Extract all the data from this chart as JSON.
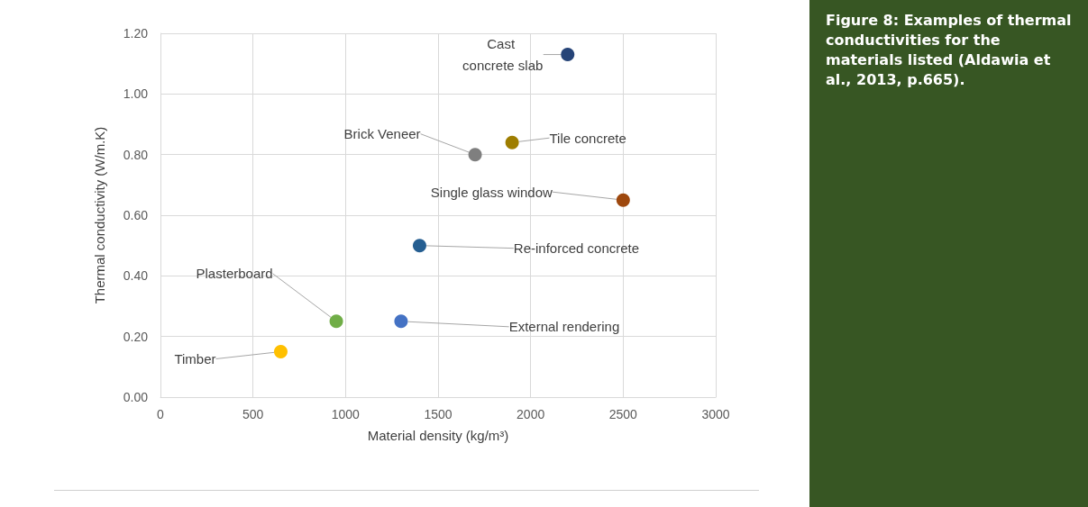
{
  "chart_data": {
    "type": "scatter",
    "xlabel": "Material density (kg/m³)",
    "ylabel": "Thermal conductivity (W/m.K)",
    "xlim": [
      0,
      3000
    ],
    "xticks": [
      0,
      500,
      1000,
      1500,
      2000,
      2500,
      3000
    ],
    "ylim": [
      0,
      1.2
    ],
    "yticks": [
      {
        "value": 0,
        "label": "0.00"
      },
      {
        "value": 0.2,
        "label": "0.20"
      },
      {
        "value": 0.4,
        "label": "0.40"
      },
      {
        "value": 0.6,
        "label": "0.60"
      },
      {
        "value": 0.8,
        "label": "0.80"
      },
      {
        "value": 1.0,
        "label": "1.00"
      },
      {
        "value": 1.2,
        "label": "1.20"
      }
    ],
    "grid": true,
    "legend": false,
    "marker": "circle",
    "series": [
      {
        "name": "Cast concrete slab",
        "color": "#264478",
        "x": [
          2200
        ],
        "values": [
          1.13
        ]
      },
      {
        "name": "Brick Veneer",
        "color": "#7f7f7f",
        "x": [
          1700
        ],
        "values": [
          0.8
        ]
      },
      {
        "name": "Tile concrete",
        "color": "#9e7d00",
        "x": [
          1900
        ],
        "values": [
          0.84
        ]
      },
      {
        "name": "Single glass window",
        "color": "#9e480e",
        "x": [
          2500
        ],
        "values": [
          0.65
        ]
      },
      {
        "name": "Re-inforced concrete",
        "color": "#255e91",
        "x": [
          1400
        ],
        "values": [
          0.5
        ]
      },
      {
        "name": "External rendering",
        "color": "#4472c4",
        "x": [
          1300
        ],
        "values": [
          0.25
        ]
      },
      {
        "name": "Plasterboard",
        "color": "#70ad47",
        "x": [
          950
        ],
        "values": [
          0.25
        ]
      },
      {
        "name": "Timber",
        "color": "#ffc000",
        "x": [
          650
        ],
        "values": [
          0.15
        ]
      }
    ],
    "annotations": [
      "Figure 8: Examples of thermal conductivities for the materials listed (Aldawia et al., 2013, p.665)."
    ]
  }
}
